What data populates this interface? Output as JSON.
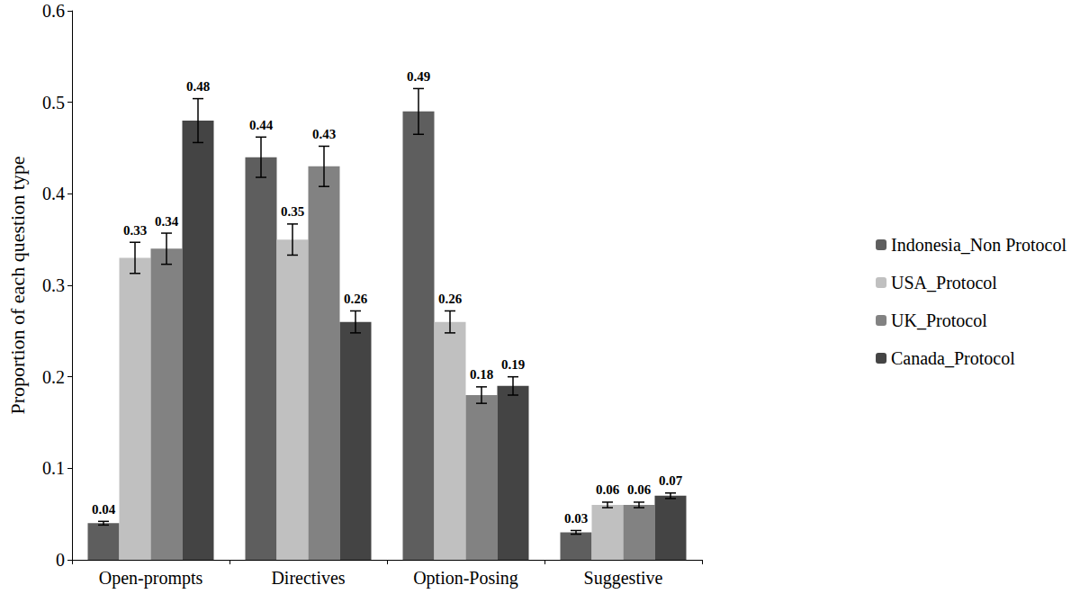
{
  "chart_data": {
    "type": "bar",
    "y_label": "Proportion of each question type",
    "categories": [
      "Open-prompts",
      "Directives",
      "Option-Posing",
      "Suggestive"
    ],
    "series": [
      {
        "name": "Indonesia_Non Protocol",
        "color": "#5e5e5e",
        "values": [
          0.04,
          0.44,
          0.49,
          0.03
        ],
        "errors": [
          0.002,
          0.022,
          0.025,
          0.002
        ]
      },
      {
        "name": "USA_Protocol",
        "color": "#c0c0c0",
        "values": [
          0.33,
          0.35,
          0.26,
          0.06
        ],
        "errors": [
          0.017,
          0.017,
          0.012,
          0.003
        ]
      },
      {
        "name": "UK_Protocol",
        "color": "#828282",
        "values": [
          0.34,
          0.43,
          0.18,
          0.06
        ],
        "errors": [
          0.017,
          0.022,
          0.009,
          0.003
        ]
      },
      {
        "name": "Canada_Protocol",
        "color": "#444444",
        "values": [
          0.48,
          0.26,
          0.19,
          0.07
        ],
        "errors": [
          0.024,
          0.012,
          0.01,
          0.003
        ]
      }
    ],
    "ylim": [
      0,
      0.6
    ],
    "yticks": [
      0,
      0.1,
      0.2,
      0.3,
      0.4,
      0.5,
      0.6
    ],
    "grid": false,
    "legend": "right",
    "data_labels": true
  }
}
